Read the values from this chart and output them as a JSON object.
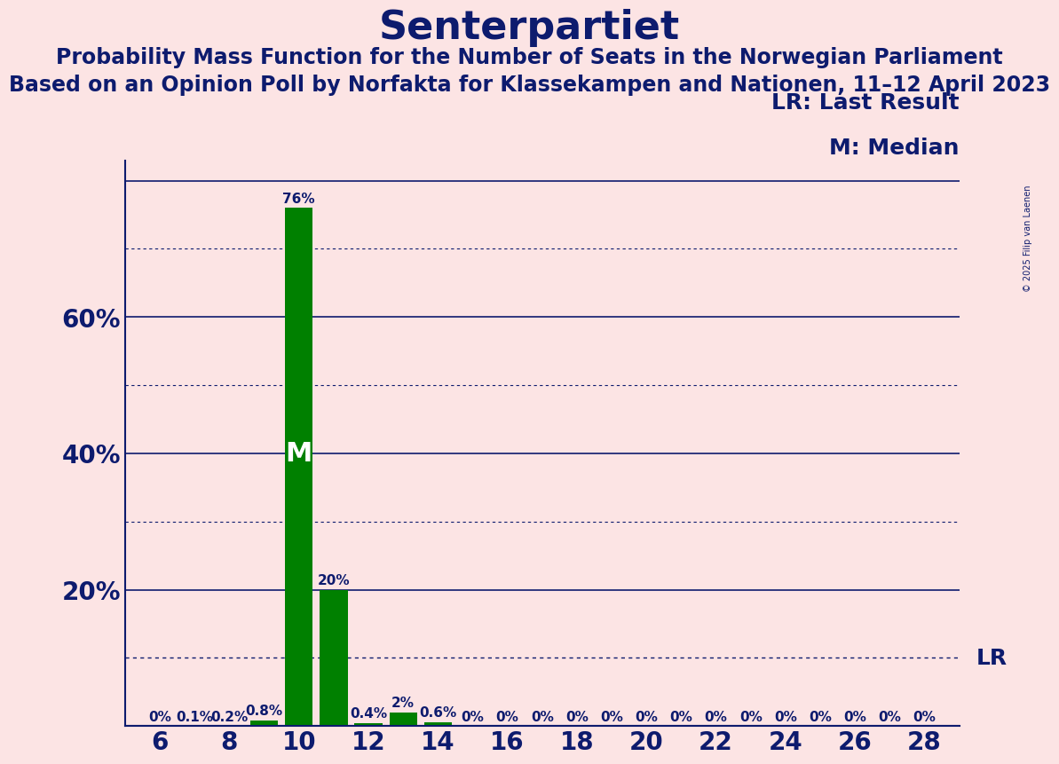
{
  "title": "Senterpartiet",
  "subtitle1": "Probability Mass Function for the Number of Seats in the Norwegian Parliament",
  "subtitle2": "Based on an Opinion Poll by Norfakta for Klassekampen and Nationen, 11–12 April 2023",
  "copyright": "© 2025 Filip van Laenen",
  "legend_lr": "LR: Last Result",
  "legend_m": "M: Median",
  "background_color": "#fce4e4",
  "bar_color": "#008000",
  "text_color": "#0d1b6e",
  "seats": [
    6,
    7,
    8,
    9,
    10,
    11,
    12,
    13,
    14,
    15,
    16,
    17,
    18,
    19,
    20,
    21,
    22,
    23,
    24,
    25,
    26,
    27,
    28
  ],
  "probabilities": [
    0.0,
    0.001,
    0.002,
    0.008,
    0.76,
    0.2,
    0.004,
    0.02,
    0.006,
    0.0,
    0.0,
    0.0,
    0.0,
    0.0,
    0.0,
    0.0,
    0.0,
    0.0,
    0.0,
    0.0,
    0.0,
    0.0,
    0.0
  ],
  "bar_labels": [
    "0%",
    "0.1%",
    "0.2%",
    "0.8%",
    "76%",
    "20%",
    "0.4%",
    "2%",
    "0.6%",
    "0%",
    "0%",
    "0%",
    "0%",
    "0%",
    "0%",
    "0%",
    "0%",
    "0%",
    "0%",
    "0%",
    "0%",
    "0%",
    "0%"
  ],
  "median_seat": 10,
  "lr_value": 0.1,
  "xlim": [
    5,
    29
  ],
  "ylim": [
    0,
    0.83
  ],
  "yticks": [
    0.2,
    0.4,
    0.6
  ],
  "ytick_labels": [
    "20%",
    "40%",
    "60%"
  ],
  "xticks": [
    6,
    8,
    10,
    12,
    14,
    16,
    18,
    20,
    22,
    24,
    26,
    28
  ],
  "solid_gridlines": [
    0.2,
    0.4,
    0.6,
    0.8
  ],
  "dotted_gridlines": [
    0.1,
    0.3,
    0.5,
    0.7
  ],
  "title_fontsize": 32,
  "subtitle_fontsize": 17,
  "axis_label_fontsize": 20,
  "bar_label_fontsize": 11,
  "legend_fontsize": 18,
  "median_label_fontsize": 22
}
